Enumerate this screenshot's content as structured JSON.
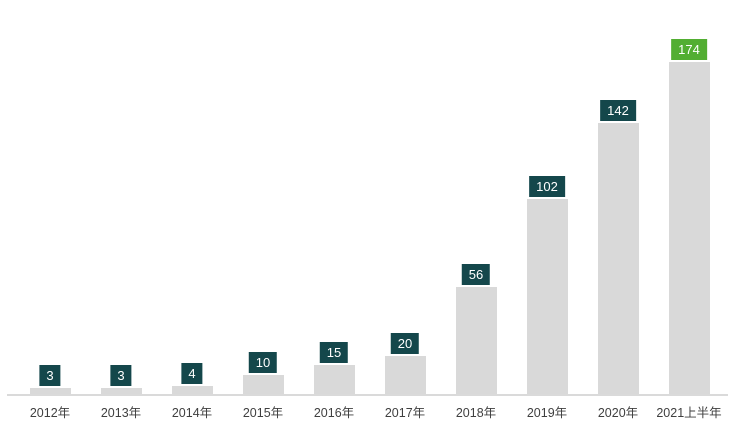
{
  "page": {
    "background_color": "#ffffff"
  },
  "chart_data": {
    "type": "bar",
    "title": "",
    "xlabel": "",
    "ylabel": "",
    "categories": [
      "2012年",
      "2013年",
      "2014年",
      "2015年",
      "2016年",
      "2017年",
      "2018年",
      "2019年",
      "2020年",
      "2021上半年"
    ],
    "values": [
      3,
      3,
      4,
      10,
      15,
      20,
      56,
      102,
      142,
      174
    ],
    "data_labels": [
      3,
      3,
      4,
      10,
      15,
      20,
      56,
      102,
      142,
      174
    ],
    "data_label_position": "above-bar-in-colored-box",
    "highlight_index": 9,
    "ylim": [
      0,
      185
    ],
    "grid": false,
    "legend": "none",
    "y_axis_visible": false,
    "x_axis_line_visible": true,
    "colors": {
      "bar_fill": "#d9d9d9",
      "label_box": "#14474b",
      "label_box_highlight": "#52ae32",
      "label_text": "#ffffff",
      "axis_line": "#dadada",
      "axis_tick_text": "#3f3f3f"
    }
  }
}
